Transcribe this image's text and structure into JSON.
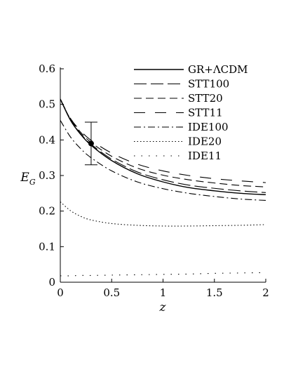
{
  "chart_data": {
    "type": "line",
    "xlabel": "z",
    "ylabel": "E",
    "ylabel_sub": "G",
    "xlim": [
      0,
      2
    ],
    "ylim": [
      0,
      0.6
    ],
    "xticks": [
      0,
      0.5,
      1,
      1.5,
      2
    ],
    "xtick_labels": [
      "0",
      "0.5",
      "1",
      "1.5",
      "2"
    ],
    "yticks": [
      0,
      0.1,
      0.2,
      0.3,
      0.4,
      0.5,
      0.6
    ],
    "ytick_labels": [
      "0",
      "0.1",
      "0.2",
      "0.3",
      "0.4",
      "0.5",
      "0.6"
    ],
    "grid": false,
    "legend_position": "top-right",
    "x": [
      0,
      0.1,
      0.2,
      0.3,
      0.5,
      0.75,
      1.0,
      1.25,
      1.5,
      1.75,
      2.0
    ],
    "series": [
      {
        "name": "GR+ΛCDM",
        "style": "solid",
        "values": [
          0.515,
          0.455,
          0.415,
          0.385,
          0.342,
          0.305,
          0.282,
          0.266,
          0.257,
          0.25,
          0.246
        ]
      },
      {
        "name": "STT100",
        "style": "longdash",
        "values": [
          0.515,
          0.456,
          0.417,
          0.388,
          0.346,
          0.31,
          0.288,
          0.273,
          0.264,
          0.257,
          0.252
        ]
      },
      {
        "name": "STT20",
        "style": "dash",
        "values": [
          0.515,
          0.458,
          0.421,
          0.393,
          0.354,
          0.321,
          0.301,
          0.288,
          0.279,
          0.272,
          0.268
        ]
      },
      {
        "name": "STT11",
        "style": "widedash",
        "values": [
          0.515,
          0.46,
          0.425,
          0.399,
          0.363,
          0.332,
          0.313,
          0.3,
          0.291,
          0.285,
          0.28
        ]
      },
      {
        "name": "IDE100",
        "style": "dashdot",
        "values": [
          0.455,
          0.408,
          0.375,
          0.35,
          0.313,
          0.282,
          0.263,
          0.25,
          0.241,
          0.234,
          0.23
        ]
      },
      {
        "name": "IDE20",
        "style": "dot",
        "values": [
          0.226,
          0.201,
          0.185,
          0.175,
          0.165,
          0.16,
          0.158,
          0.158,
          0.159,
          0.16,
          0.162
        ]
      },
      {
        "name": "IDE11",
        "style": "sparsedot",
        "values": [
          0.018,
          0.018,
          0.019,
          0.019,
          0.02,
          0.021,
          0.022,
          0.023,
          0.025,
          0.026,
          0.027
        ]
      }
    ],
    "data_point": {
      "x": 0.3,
      "y": 0.39,
      "yerr_low": 0.33,
      "yerr_high": 0.45
    }
  }
}
